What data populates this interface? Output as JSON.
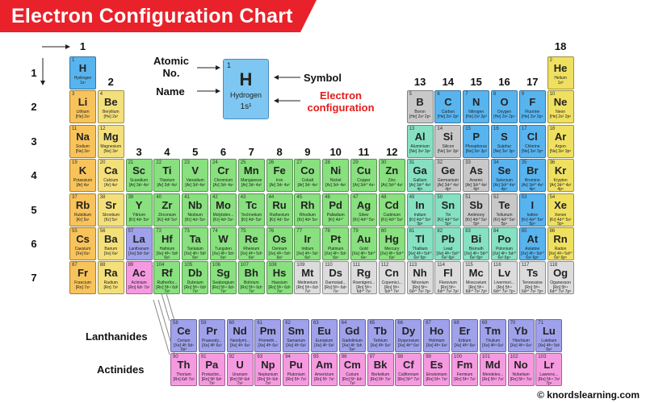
{
  "title": "Electron Configuration Chart",
  "copyright": "© knordslearning.com",
  "colors": {
    "banner": "#e8212a"
  },
  "legend": {
    "number": "1",
    "symbol": "H",
    "name": "Hydrogen",
    "config": "1s¹",
    "atomic_no_label": "Atomic No.",
    "name_label": "Name",
    "symbol_label": "Symbol",
    "config_label": "Electron configuration"
  },
  "group_labels": [
    "1",
    "2",
    "3",
    "4",
    "5",
    "6",
    "7",
    "8",
    "9",
    "10",
    "11",
    "12",
    "13",
    "14",
    "15",
    "16",
    "17",
    "18"
  ],
  "period_labels": [
    "1",
    "2",
    "3",
    "4",
    "5",
    "6",
    "7"
  ],
  "series_labels": {
    "lanthanides": "Lanthanides",
    "actinides": "Actinides"
  },
  "category_colors": {
    "alkali": "#f8c35a",
    "alkaline": "#f4e07a",
    "transition": "#88e07e",
    "post": "#86e0c2",
    "metalloid": "#c8c8c8",
    "nonmetal": "#58b4ef",
    "halogen": "#58b4ef",
    "noble": "#f0e060",
    "lanthanide": "#9fa2ea",
    "actinide": "#f59ae0",
    "unknown": "#dcdcdc",
    "hydrogen": "#58b4ef"
  },
  "elements": [
    {
      "n": "1",
      "s": "H",
      "name": "Hydrogen",
      "cfg": "1s¹",
      "row": 1,
      "col": 1,
      "cat": "hydrogen"
    },
    {
      "n": "2",
      "s": "He",
      "name": "Helium",
      "cfg": "1s²",
      "row": 1,
      "col": 18,
      "cat": "noble"
    },
    {
      "n": "3",
      "s": "Li",
      "name": "Lithium",
      "cfg": "[He] 2s¹",
      "row": 2,
      "col": 1,
      "cat": "alkali"
    },
    {
      "n": "4",
      "s": "Be",
      "name": "Beryllium",
      "cfg": "[He] 2s²",
      "row": 2,
      "col": 2,
      "cat": "alkaline"
    },
    {
      "n": "5",
      "s": "B",
      "name": "Boron",
      "cfg": "[He] 2s² 2p¹",
      "row": 2,
      "col": 13,
      "cat": "metalloid"
    },
    {
      "n": "6",
      "s": "C",
      "name": "Carbon",
      "cfg": "[He] 2s² 2p²",
      "row": 2,
      "col": 14,
      "cat": "nonmetal"
    },
    {
      "n": "7",
      "s": "N",
      "name": "Nitrogen",
      "cfg": "[He] 2s² 2p³",
      "row": 2,
      "col": 15,
      "cat": "nonmetal"
    },
    {
      "n": "8",
      "s": "O",
      "name": "Oxygen",
      "cfg": "[He] 2s² 2p⁴",
      "row": 2,
      "col": 16,
      "cat": "nonmetal"
    },
    {
      "n": "9",
      "s": "F",
      "name": "Fluorine",
      "cfg": "[He] 2s² 2p⁵",
      "row": 2,
      "col": 17,
      "cat": "halogen"
    },
    {
      "n": "10",
      "s": "Ne",
      "name": "Neon",
      "cfg": "[He] 2s² 2p⁶",
      "row": 2,
      "col": 18,
      "cat": "noble"
    },
    {
      "n": "11",
      "s": "Na",
      "name": "Sodium",
      "cfg": "[Ne] 3s¹",
      "row": 3,
      "col": 1,
      "cat": "alkali"
    },
    {
      "n": "12",
      "s": "Mg",
      "name": "Magnesium",
      "cfg": "[Ne] 3s²",
      "row": 3,
      "col": 2,
      "cat": "alkaline"
    },
    {
      "n": "13",
      "s": "Al",
      "name": "Aluminium",
      "cfg": "[Ne] 3s² 3p¹",
      "row": 3,
      "col": 13,
      "cat": "post"
    },
    {
      "n": "14",
      "s": "Si",
      "name": "Silicon",
      "cfg": "[Ne] 3s² 3p²",
      "row": 3,
      "col": 14,
      "cat": "metalloid"
    },
    {
      "n": "15",
      "s": "P",
      "name": "Phosphorus",
      "cfg": "[Ne] 3s² 3p³",
      "row": 3,
      "col": 15,
      "cat": "nonmetal"
    },
    {
      "n": "16",
      "s": "S",
      "name": "Sulphur",
      "cfg": "[Ne] 3s² 3p⁴",
      "row": 3,
      "col": 16,
      "cat": "nonmetal"
    },
    {
      "n": "17",
      "s": "Cl",
      "name": "Chlorine",
      "cfg": "[Ne] 3s² 3p⁵",
      "row": 3,
      "col": 17,
      "cat": "halogen"
    },
    {
      "n": "18",
      "s": "Ar",
      "name": "Argon",
      "cfg": "[Ne] 3s² 3p⁶",
      "row": 3,
      "col": 18,
      "cat": "noble"
    },
    {
      "n": "19",
      "s": "K",
      "name": "Potassium",
      "cfg": "[Ar] 4s¹",
      "row": 4,
      "col": 1,
      "cat": "alkali"
    },
    {
      "n": "20",
      "s": "Ca",
      "name": "Calcium",
      "cfg": "[Ar] 4s²",
      "row": 4,
      "col": 2,
      "cat": "alkaline"
    },
    {
      "n": "21",
      "s": "Sc",
      "name": "Scandium",
      "cfg": "[Ar] 3d¹ 4s²",
      "row": 4,
      "col": 3,
      "cat": "transition"
    },
    {
      "n": "22",
      "s": "Ti",
      "name": "Titanium",
      "cfg": "[Ar] 3d² 4s²",
      "row": 4,
      "col": 4,
      "cat": "transition"
    },
    {
      "n": "23",
      "s": "V",
      "name": "Vanadium",
      "cfg": "[Ar] 3d³ 4s²",
      "row": 4,
      "col": 5,
      "cat": "transition"
    },
    {
      "n": "24",
      "s": "Cr",
      "name": "Chromium",
      "cfg": "[Ar] 3d⁵ 4s¹",
      "row": 4,
      "col": 6,
      "cat": "transition"
    },
    {
      "n": "25",
      "s": "Mn",
      "name": "Manganese",
      "cfg": "[Ar] 3d⁵ 4s²",
      "row": 4,
      "col": 7,
      "cat": "transition"
    },
    {
      "n": "26",
      "s": "Fe",
      "name": "Iron",
      "cfg": "[Ar] 3d⁶ 4s²",
      "row": 4,
      "col": 8,
      "cat": "transition"
    },
    {
      "n": "27",
      "s": "Co",
      "name": "Cobalt",
      "cfg": "[Ar] 3d⁷ 4s²",
      "row": 4,
      "col": 9,
      "cat": "transition"
    },
    {
      "n": "28",
      "s": "Ni",
      "name": "Nickel",
      "cfg": "[Ar] 3d⁸ 4s²",
      "row": 4,
      "col": 10,
      "cat": "transition"
    },
    {
      "n": "29",
      "s": "Cu",
      "name": "Copper",
      "cfg": "[Ar] 3d¹⁰ 4s¹",
      "row": 4,
      "col": 11,
      "cat": "transition"
    },
    {
      "n": "30",
      "s": "Zn",
      "name": "Zinc",
      "cfg": "[Ar] 3d¹⁰ 4s²",
      "row": 4,
      "col": 12,
      "cat": "transition"
    },
    {
      "n": "31",
      "s": "Ga",
      "name": "Gallium",
      "cfg": "[Ar] 3d¹⁰ 4s² 4p¹",
      "row": 4,
      "col": 13,
      "cat": "post"
    },
    {
      "n": "32",
      "s": "Ge",
      "name": "Germanium",
      "cfg": "[Ar] 3d¹⁰ 4s² 4p²",
      "row": 4,
      "col": 14,
      "cat": "metalloid"
    },
    {
      "n": "33",
      "s": "As",
      "name": "Arsenic",
      "cfg": "[Ar] 3d¹⁰ 4s² 4p³",
      "row": 4,
      "col": 15,
      "cat": "metalloid"
    },
    {
      "n": "34",
      "s": "Se",
      "name": "Selenium",
      "cfg": "[Ar] 3d¹⁰ 4s² 4p⁴",
      "row": 4,
      "col": 16,
      "cat": "nonmetal"
    },
    {
      "n": "35",
      "s": "Br",
      "name": "Bromine",
      "cfg": "[Ar] 3d¹⁰ 4s² 4p⁵",
      "row": 4,
      "col": 17,
      "cat": "halogen"
    },
    {
      "n": "36",
      "s": "Kr",
      "name": "Krypton",
      "cfg": "[Ar] 3d¹⁰ 4s² 4p⁶",
      "row": 4,
      "col": 18,
      "cat": "noble"
    },
    {
      "n": "37",
      "s": "Rb",
      "name": "Rubidium",
      "cfg": "[Kr] 5s¹",
      "row": 5,
      "col": 1,
      "cat": "alkali"
    },
    {
      "n": "38",
      "s": "Sr",
      "name": "Strontium",
      "cfg": "[Kr] 5s²",
      "row": 5,
      "col": 2,
      "cat": "alkaline"
    },
    {
      "n": "39",
      "s": "Y",
      "name": "Yttrium",
      "cfg": "[Kr] 4d¹ 5s²",
      "row": 5,
      "col": 3,
      "cat": "transition"
    },
    {
      "n": "40",
      "s": "Zr",
      "name": "Zirconium",
      "cfg": "[Kr] 4d² 5s²",
      "row": 5,
      "col": 4,
      "cat": "transition"
    },
    {
      "n": "41",
      "s": "Nb",
      "name": "Niobium",
      "cfg": "[Kr] 4d⁴ 5s¹",
      "row": 5,
      "col": 5,
      "cat": "transition"
    },
    {
      "n": "42",
      "s": "Mo",
      "name": "Molybden...",
      "cfg": "[Kr] 4d⁵ 5s¹",
      "row": 5,
      "col": 6,
      "cat": "transition"
    },
    {
      "n": "43",
      "s": "Tc",
      "name": "Technetium",
      "cfg": "[Kr] 4d⁵ 5s²",
      "row": 5,
      "col": 7,
      "cat": "transition"
    },
    {
      "n": "44",
      "s": "Ru",
      "name": "Ruthenium",
      "cfg": "[Kr] 4d⁷ 5s¹",
      "row": 5,
      "col": 8,
      "cat": "transition"
    },
    {
      "n": "45",
      "s": "Rh",
      "name": "Rhodium",
      "cfg": "[Kr] 4d⁸ 5s¹",
      "row": 5,
      "col": 9,
      "cat": "transition"
    },
    {
      "n": "46",
      "s": "Pd",
      "name": "Palladium",
      "cfg": "[Kr] 4d¹⁰",
      "row": 5,
      "col": 10,
      "cat": "transition"
    },
    {
      "n": "47",
      "s": "Ag",
      "name": "Silver",
      "cfg": "[Kr] 4d¹⁰ 5s¹",
      "row": 5,
      "col": 11,
      "cat": "transition"
    },
    {
      "n": "48",
      "s": "Cd",
      "name": "Cadmium",
      "cfg": "[Kr] 4d¹⁰ 5s²",
      "row": 5,
      "col": 12,
      "cat": "transition"
    },
    {
      "n": "49",
      "s": "In",
      "name": "Indium",
      "cfg": "[Kr] 4d¹⁰ 5s² 5p¹",
      "row": 5,
      "col": 13,
      "cat": "post"
    },
    {
      "n": "50",
      "s": "Sn",
      "name": "Tin",
      "cfg": "[Kr] 4d¹⁰ 5s² 5p²",
      "row": 5,
      "col": 14,
      "cat": "post"
    },
    {
      "n": "51",
      "s": "Sb",
      "name": "Antimony",
      "cfg": "[Kr] 4d¹⁰ 5s² 5p³",
      "row": 5,
      "col": 15,
      "cat": "metalloid"
    },
    {
      "n": "52",
      "s": "Te",
      "name": "Tellurium",
      "cfg": "[Kr] 4d¹⁰ 5s² 5p⁴",
      "row": 5,
      "col": 16,
      "cat": "metalloid"
    },
    {
      "n": "53",
      "s": "I",
      "name": "Iodine",
      "cfg": "[Kr] 4d¹⁰ 5s² 5p⁵",
      "row": 5,
      "col": 17,
      "cat": "halogen"
    },
    {
      "n": "54",
      "s": "Xe",
      "name": "Xenon",
      "cfg": "[Kr] 4d¹⁰ 5s² 5p⁶",
      "row": 5,
      "col": 18,
      "cat": "noble"
    },
    {
      "n": "55",
      "s": "Cs",
      "name": "Caesium",
      "cfg": "[Xe] 6s¹",
      "row": 6,
      "col": 1,
      "cat": "alkali"
    },
    {
      "n": "56",
      "s": "Ba",
      "name": "Barium",
      "cfg": "[Xe] 6s²",
      "row": 6,
      "col": 2,
      "cat": "alkaline"
    },
    {
      "n": "57",
      "s": "La",
      "name": "Lanthanum",
      "cfg": "[Xe] 5d¹ 6s²",
      "row": 6,
      "col": 3,
      "cat": "lanthanide"
    },
    {
      "n": "72",
      "s": "Hf",
      "name": "Hafnium",
      "cfg": "[Xe] 4f¹⁴ 5d² 6s²",
      "row": 6,
      "col": 4,
      "cat": "transition"
    },
    {
      "n": "73",
      "s": "Ta",
      "name": "Tantalum",
      "cfg": "[Xe] 4f¹⁴ 5d³ 6s²",
      "row": 6,
      "col": 5,
      "cat": "transition"
    },
    {
      "n": "74",
      "s": "W",
      "name": "Tungsten",
      "cfg": "[Xe] 4f¹⁴ 5d⁴ 6s²",
      "row": 6,
      "col": 6,
      "cat": "transition"
    },
    {
      "n": "75",
      "s": "Re",
      "name": "Rhenium",
      "cfg": "[Xe] 4f¹⁴ 5d⁵ 6s²",
      "row": 6,
      "col": 7,
      "cat": "transition"
    },
    {
      "n": "76",
      "s": "Os",
      "name": "Osmium",
      "cfg": "[Xe] 4f¹⁴ 5d⁶ 6s²",
      "row": 6,
      "col": 8,
      "cat": "transition"
    },
    {
      "n": "77",
      "s": "Ir",
      "name": "Iridium",
      "cfg": "[Xe] 4f¹⁴ 5d⁷ 6s²",
      "row": 6,
      "col": 9,
      "cat": "transition"
    },
    {
      "n": "78",
      "s": "Pt",
      "name": "Platinum",
      "cfg": "[Xe] 4f¹⁴ 5d⁹ 6s¹",
      "row": 6,
      "col": 10,
      "cat": "transition"
    },
    {
      "n": "79",
      "s": "Au",
      "name": "Gold",
      "cfg": "[Xe] 4f¹⁴ 5d¹⁰ 6s¹",
      "row": 6,
      "col": 11,
      "cat": "transition"
    },
    {
      "n": "80",
      "s": "Hg",
      "name": "Mercury",
      "cfg": "[Xe] 4f¹⁴ 5d¹⁰ 6s²",
      "row": 6,
      "col": 12,
      "cat": "transition"
    },
    {
      "n": "81",
      "s": "Tl",
      "name": "Thallium",
      "cfg": "[Xe] 4f¹⁴ 5d¹⁰ 6s² 6p¹",
      "row": 6,
      "col": 13,
      "cat": "post"
    },
    {
      "n": "82",
      "s": "Pb",
      "name": "Lead",
      "cfg": "[Xe] 4f¹⁴ 5d¹⁰ 6s² 6p²",
      "row": 6,
      "col": 14,
      "cat": "post"
    },
    {
      "n": "83",
      "s": "Bi",
      "name": "Bismuth",
      "cfg": "[Xe] 4f¹⁴ 5d¹⁰ 6s² 6p³",
      "row": 6,
      "col": 15,
      "cat": "post"
    },
    {
      "n": "84",
      "s": "Po",
      "name": "Polonium",
      "cfg": "[Xe] 4f¹⁴ 5d¹⁰ 6s² 6p⁴",
      "row": 6,
      "col": 16,
      "cat": "post"
    },
    {
      "n": "85",
      "s": "At",
      "name": "Astatine",
      "cfg": "[Xe] 4f¹⁴ 5d¹⁰ 6s² 6p⁵",
      "row": 6,
      "col": 17,
      "cat": "halogen"
    },
    {
      "n": "86",
      "s": "Rn",
      "name": "Radon",
      "cfg": "[Xe] 4f¹⁴ 5d¹⁰ 6s² 6p⁶",
      "row": 6,
      "col": 18,
      "cat": "noble"
    },
    {
      "n": "87",
      "s": "Fr",
      "name": "Francium",
      "cfg": "[Rn] 7s¹",
      "row": 7,
      "col": 1,
      "cat": "alkali"
    },
    {
      "n": "88",
      "s": "Ra",
      "name": "Radium",
      "cfg": "[Rn] 7s²",
      "row": 7,
      "col": 2,
      "cat": "alkaline"
    },
    {
      "n": "89",
      "s": "Ac",
      "name": "Actinium",
      "cfg": "[Rn] 6d¹ 7s²",
      "row": 7,
      "col": 3,
      "cat": "actinide"
    },
    {
      "n": "104",
      "s": "Rf",
      "name": "Rutherfor...",
      "cfg": "[Rn] 5f¹⁴ 6d² 7s²",
      "row": 7,
      "col": 4,
      "cat": "transition"
    },
    {
      "n": "105",
      "s": "Db",
      "name": "Dubnium",
      "cfg": "[Rn] 5f¹⁴ 6d³ 7s²",
      "row": 7,
      "col": 5,
      "cat": "transition"
    },
    {
      "n": "106",
      "s": "Sg",
      "name": "Seaborgium",
      "cfg": "[Rn] 5f¹⁴ 6d⁴ 7s²",
      "row": 7,
      "col": 6,
      "cat": "transition"
    },
    {
      "n": "107",
      "s": "Bh",
      "name": "Bohrium",
      "cfg": "[Rn] 5f¹⁴ 6d⁵ 7s²",
      "row": 7,
      "col": 7,
      "cat": "transition"
    },
    {
      "n": "108",
      "s": "Hs",
      "name": "Hassium",
      "cfg": "[Rn] 5f¹⁴ 6d⁶ 7s²",
      "row": 7,
      "col": 8,
      "cat": "transition"
    },
    {
      "n": "109",
      "s": "Mt",
      "name": "Meitnerium",
      "cfg": "[Rn] 5f¹⁴ 6d⁷ 7s²",
      "row": 7,
      "col": 9,
      "cat": "unknown"
    },
    {
      "n": "110",
      "s": "Ds",
      "name": "Darmstad...",
      "cfg": "[Rn] 5f¹⁴ 6d⁹ 7s¹",
      "row": 7,
      "col": 10,
      "cat": "unknown"
    },
    {
      "n": "111",
      "s": "Rg",
      "name": "Roentgeni...",
      "cfg": "[Rn] 5f¹⁴ 6d¹⁰ 7s¹",
      "row": 7,
      "col": 11,
      "cat": "unknown"
    },
    {
      "n": "112",
      "s": "Cn",
      "name": "Copernici...",
      "cfg": "[Rn] 5f¹⁴ 6d¹⁰ 7s²",
      "row": 7,
      "col": 12,
      "cat": "unknown"
    },
    {
      "n": "113",
      "s": "Nh",
      "name": "Nihonium",
      "cfg": "[Rn] 5f¹⁴ 6d¹⁰ 7s² 7p¹",
      "row": 7,
      "col": 13,
      "cat": "unknown"
    },
    {
      "n": "114",
      "s": "Fl",
      "name": "Flerovium",
      "cfg": "[Rn] 5f¹⁴ 6d¹⁰ 7s² 7p²",
      "row": 7,
      "col": 14,
      "cat": "unknown"
    },
    {
      "n": "115",
      "s": "Mc",
      "name": "Moscovium",
      "cfg": "[Rn] 5f¹⁴ 6d¹⁰ 7s² 7p³",
      "row": 7,
      "col": 15,
      "cat": "unknown"
    },
    {
      "n": "116",
      "s": "Lv",
      "name": "Livermori...",
      "cfg": "[Rn] 5f¹⁴ 6d¹⁰ 7s² 7p⁴",
      "row": 7,
      "col": 16,
      "cat": "unknown"
    },
    {
      "n": "117",
      "s": "Ts",
      "name": "Tennessine",
      "cfg": "[Rn] 5f¹⁴ 6d¹⁰ 7s² 7p⁵",
      "row": 7,
      "col": 17,
      "cat": "unknown"
    },
    {
      "n": "118",
      "s": "Og",
      "name": "Oganesson",
      "cfg": "[Rn] 5f¹⁴ 6d¹⁰ 7s² 7p⁶",
      "row": 7,
      "col": 18,
      "cat": "unknown"
    }
  ],
  "lanthanides": [
    {
      "n": "58",
      "s": "Ce",
      "name": "Cerium",
      "cfg": "[Xe] 4f¹ 5d¹ 6s²"
    },
    {
      "n": "59",
      "s": "Pr",
      "name": "Praseody...",
      "cfg": "[Xe] 4f³ 6s²"
    },
    {
      "n": "60",
      "s": "Nd",
      "name": "Neodymi...",
      "cfg": "[Xe] 4f⁴ 6s²"
    },
    {
      "n": "61",
      "s": "Pm",
      "name": "Prometh...",
      "cfg": "[Xe] 4f⁵ 6s²"
    },
    {
      "n": "62",
      "s": "Sm",
      "name": "Samarium",
      "cfg": "[Xe] 4f⁶ 6s²"
    },
    {
      "n": "63",
      "s": "Eu",
      "name": "Europium",
      "cfg": "[Xe] 4f⁷ 6s²"
    },
    {
      "n": "64",
      "s": "Gd",
      "name": "Gadolinium",
      "cfg": "[Xe] 4f⁷ 5d¹ 6s²"
    },
    {
      "n": "65",
      "s": "Tb",
      "name": "Terbium",
      "cfg": "[Xe] 4f⁹ 6s²"
    },
    {
      "n": "66",
      "s": "Dy",
      "name": "Dysprosium",
      "cfg": "[Xe] 4f¹⁰ 6s²"
    },
    {
      "n": "67",
      "s": "Ho",
      "name": "Holmium",
      "cfg": "[Xe] 4f¹¹ 6s²"
    },
    {
      "n": "68",
      "s": "Er",
      "name": "Erbium",
      "cfg": "[Xe] 4f¹² 6s²"
    },
    {
      "n": "69",
      "s": "Tm",
      "name": "Thulium",
      "cfg": "[Xe] 4f¹³ 6s²"
    },
    {
      "n": "70",
      "s": "Yb",
      "name": "Ytterbium",
      "cfg": "[Xe] 4f¹⁴ 6s²"
    },
    {
      "n": "71",
      "s": "Lu",
      "name": "Lutetium",
      "cfg": "[Xe] 4f¹⁴ 5d¹ 6s²"
    }
  ],
  "actinides": [
    {
      "n": "90",
      "s": "Th",
      "name": "Thorium",
      "cfg": "[Rn] 6d² 7s²"
    },
    {
      "n": "91",
      "s": "Pa",
      "name": "Protactini...",
      "cfg": "[Rn] 5f² 6d¹ 7s²"
    },
    {
      "n": "92",
      "s": "U",
      "name": "Uranium",
      "cfg": "[Rn] 5f³ 6d¹ 7s²"
    },
    {
      "n": "93",
      "s": "Np",
      "name": "Neptunium",
      "cfg": "[Rn] 5f⁴ 6d¹ 7s²"
    },
    {
      "n": "94",
      "s": "Pu",
      "name": "Plutonium",
      "cfg": "[Rn] 5f⁶ 7s²"
    },
    {
      "n": "95",
      "s": "Am",
      "name": "Americium",
      "cfg": "[Rn] 5f⁷ 7s²"
    },
    {
      "n": "96",
      "s": "Cm",
      "name": "Curium",
      "cfg": "[Rn] 5f⁷ 6d¹ 7s²"
    },
    {
      "n": "97",
      "s": "Bk",
      "name": "Berkelium",
      "cfg": "[Rn] 5f⁹ 7s²"
    },
    {
      "n": "98",
      "s": "Cf",
      "name": "Californium",
      "cfg": "[Rn] 5f¹⁰ 7s²"
    },
    {
      "n": "99",
      "s": "Es",
      "name": "Einsteinium",
      "cfg": "[Rn] 5f¹¹ 7s²"
    },
    {
      "n": "100",
      "s": "Fm",
      "name": "Fermium",
      "cfg": "[Rn] 5f¹² 7s²"
    },
    {
      "n": "101",
      "s": "Md",
      "name": "Mendelev...",
      "cfg": "[Rn] 5f¹³ 7s²"
    },
    {
      "n": "102",
      "s": "No",
      "name": "Nobelium",
      "cfg": "[Rn] 5f¹⁴ 7s²"
    },
    {
      "n": "103",
      "s": "Lr",
      "name": "Lawrenc...",
      "cfg": "[Rn] 5f¹⁴ 7s² 7p¹"
    }
  ]
}
